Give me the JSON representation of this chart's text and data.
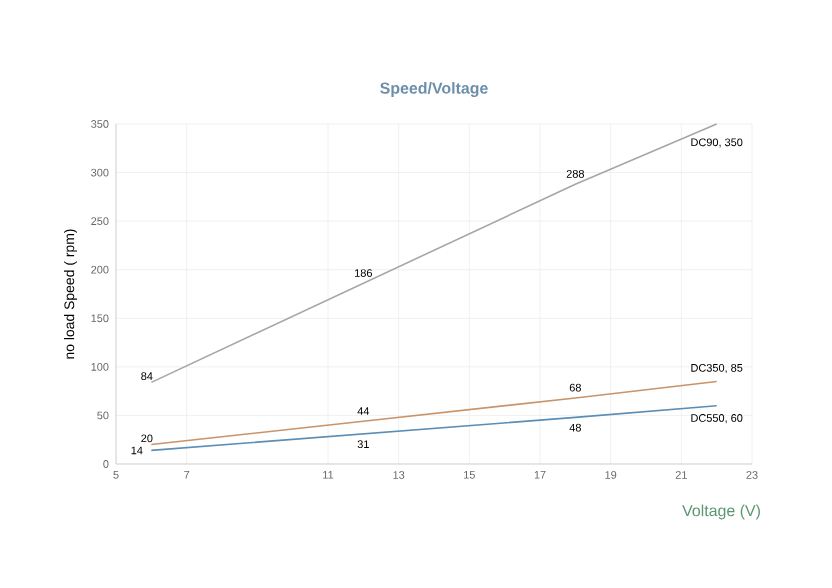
{
  "chart_data": {
    "type": "line",
    "title": "Speed/Voltage",
    "xlabel": "Voltage (V)",
    "ylabel": "no load Speed ( rpm)",
    "x": [
      6,
      12,
      18,
      22
    ],
    "series": [
      {
        "color": "#a6a6a6",
        "values": [
          84,
          186,
          288,
          350
        ],
        "value_labels": [
          "84",
          "186",
          "288",
          "DC90, 350"
        ]
      },
      {
        "color": "#c9936a",
        "values": [
          20,
          44,
          68,
          85
        ],
        "value_labels": [
          "20",
          "44",
          "68",
          "DC350, 85"
        ]
      },
      {
        "color": "#5b8db5",
        "values": [
          14,
          31,
          48,
          60
        ],
        "value_labels": [
          "14",
          "31",
          "48",
          "DC550, 60"
        ]
      }
    ],
    "xlim": [
      5,
      23
    ],
    "xticks": [
      5,
      7,
      11,
      13,
      15,
      17,
      19,
      21,
      23
    ],
    "ylim": [
      0,
      350
    ],
    "yticks": [
      0,
      50,
      100,
      150,
      200,
      250,
      300,
      350
    ],
    "grid": true
  }
}
